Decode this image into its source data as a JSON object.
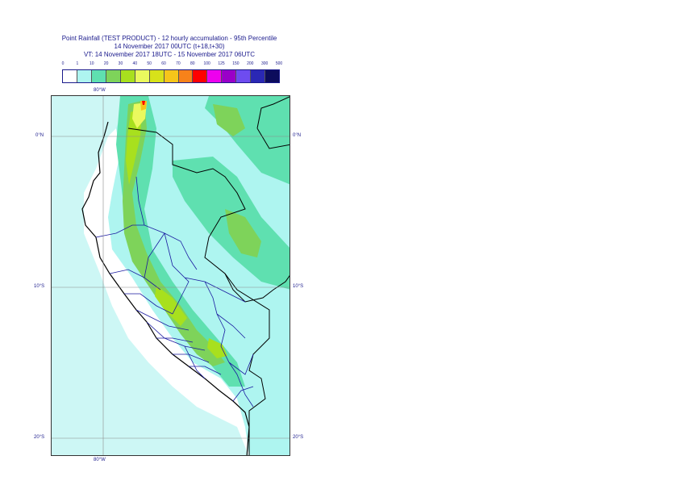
{
  "title": {
    "line1": "Point Rainfall (TEST PRODUCT) - 12 hourly accumulation - 95th Percentile",
    "line2": "14 November 2017 00UTC (t+18,t+30)",
    "line3": "VT: 14 November 2017 18UTC - 15 November 2017 06UTC"
  },
  "legend": {
    "ticks": [
      "0",
      "1",
      "10",
      "20",
      "30",
      "40",
      "50",
      "60",
      "70",
      "80",
      "100",
      "125",
      "150",
      "200",
      "300",
      "500"
    ],
    "colors": [
      "#ffffff",
      "#aef5f0",
      "#5fe0b0",
      "#7ed35a",
      "#a8e01e",
      "#eaf95e",
      "#d7e21a",
      "#f6c51a",
      "#f7821a",
      "#ff0000",
      "#ee00ee",
      "#9a00c8",
      "#6e4cf0",
      "#2a28b4",
      "#0c0c5c"
    ]
  },
  "map": {
    "lon_label_top": "80°W",
    "lon_label_bottom": "80°W",
    "lat_labels": [
      "0°N",
      "10°S",
      "20°S"
    ],
    "colors": {
      "sea": "#c8f6f4",
      "light_rain": "#aef5f0",
      "moderate_rain": "#5fe0b0",
      "heavy_rain": "#7ed35a",
      "very_heavy_rain": "#a8e01e",
      "extreme_rain": "#eaf95e",
      "peak": "#f6c51a",
      "max": "#ff0000",
      "coast": "#000000",
      "borders": "#1a1aa0",
      "grid": "#8c8c8c"
    }
  }
}
